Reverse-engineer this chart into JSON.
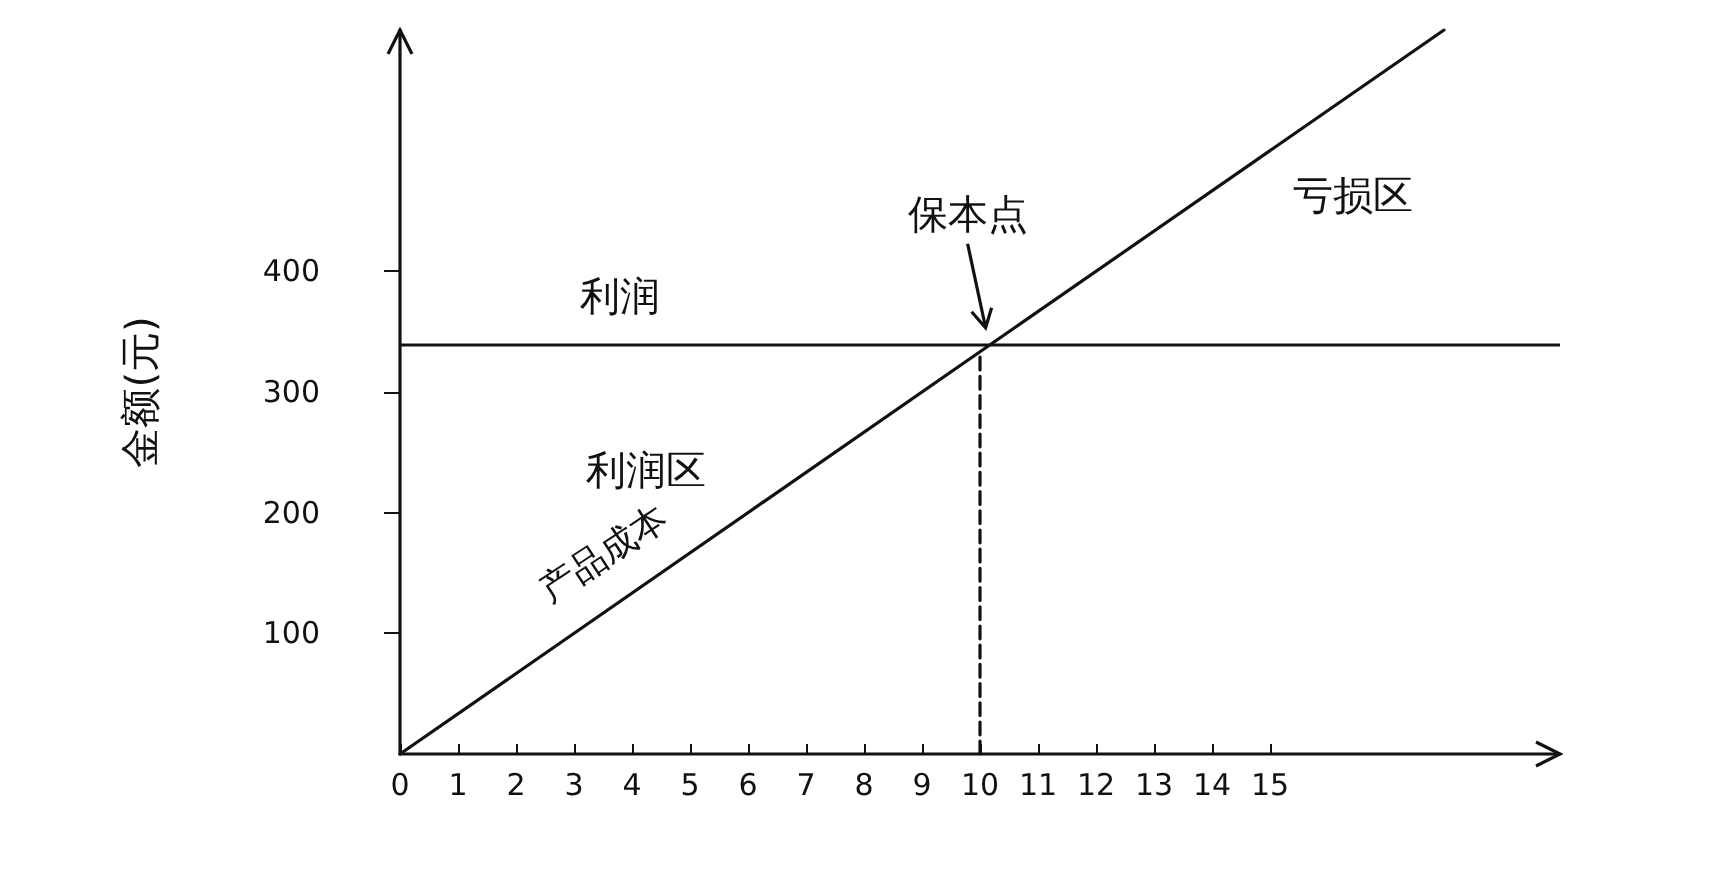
{
  "chart_data": {
    "type": "line",
    "ylabel": "金额(元)",
    "xlim": [
      0,
      20
    ],
    "xticks": [
      0,
      1,
      2,
      3,
      4,
      5,
      6,
      7,
      8,
      9,
      10,
      11,
      12,
      13,
      14,
      15
    ],
    "ylim": [
      0,
      600
    ],
    "yticks": [
      100,
      200,
      300,
      400
    ],
    "series": [
      {
        "color": "#111111",
        "x": [
          0,
          18
        ],
        "values": [
          0,
          600
        ]
      },
      {
        "color": "#111111",
        "x": [
          10,
          10
        ],
        "values": [
          0,
          333
        ],
        "line_style": "dashed"
      }
    ],
    "ref_lines": [
      {
        "axis": "y",
        "value": 340,
        "label": "利润",
        "color": "#111111"
      }
    ],
    "annotations": [
      "利润区",
      "亏损区",
      {
        "text": "产品成本",
        "x": 3,
        "y": 100
      },
      {
        "text": "保本点",
        "x": 10.2,
        "y": 340
      }
    ],
    "marker": "none",
    "grid": false
  }
}
